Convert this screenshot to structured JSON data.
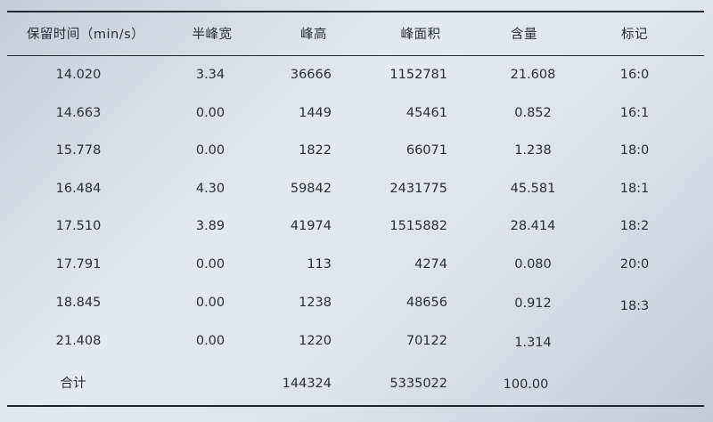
{
  "headers": {
    "retention_time": "保留时间（min/s）",
    "half_width": "半峰宽",
    "peak_height": "峰高",
    "peak_area": "峰面积",
    "content": "含量",
    "label": "标记"
  },
  "rows": [
    {
      "retention_time": "14.020",
      "half_width": "3.34",
      "peak_height": "36666",
      "peak_area": "1152781",
      "content": "21.608",
      "label": "16:0"
    },
    {
      "retention_time": "14.663",
      "half_width": "0.00",
      "peak_height": "1449",
      "peak_area": "45461",
      "content": "0.852",
      "label": "16:1"
    },
    {
      "retention_time": "15.778",
      "half_width": "0.00",
      "peak_height": "1822",
      "peak_area": "66071",
      "content": "1.238",
      "label": "18:0"
    },
    {
      "retention_time": "16.484",
      "half_width": "4.30",
      "peak_height": "59842",
      "peak_area": "2431775",
      "content": "45.581",
      "label": "18:1"
    },
    {
      "retention_time": "17.510",
      "half_width": "3.89",
      "peak_height": "41974",
      "peak_area": "1515882",
      "content": "28.414",
      "label": "18:2"
    },
    {
      "retention_time": "17.791",
      "half_width": "0.00",
      "peak_height": "113",
      "peak_area": "4274",
      "content": "0.080",
      "label": "20:0"
    },
    {
      "retention_time": "18.845",
      "half_width": "0.00",
      "peak_height": "1238",
      "peak_area": "48656",
      "content": "0.912",
      "label": "18:3"
    },
    {
      "retention_time": "21.408",
      "half_width": "0.00",
      "peak_height": "1220",
      "peak_area": "70122",
      "content": "1.314",
      "label": ""
    }
  ],
  "total": {
    "label": "合计",
    "peak_height": "144324",
    "peak_area": "5335022",
    "content": "100.00"
  }
}
